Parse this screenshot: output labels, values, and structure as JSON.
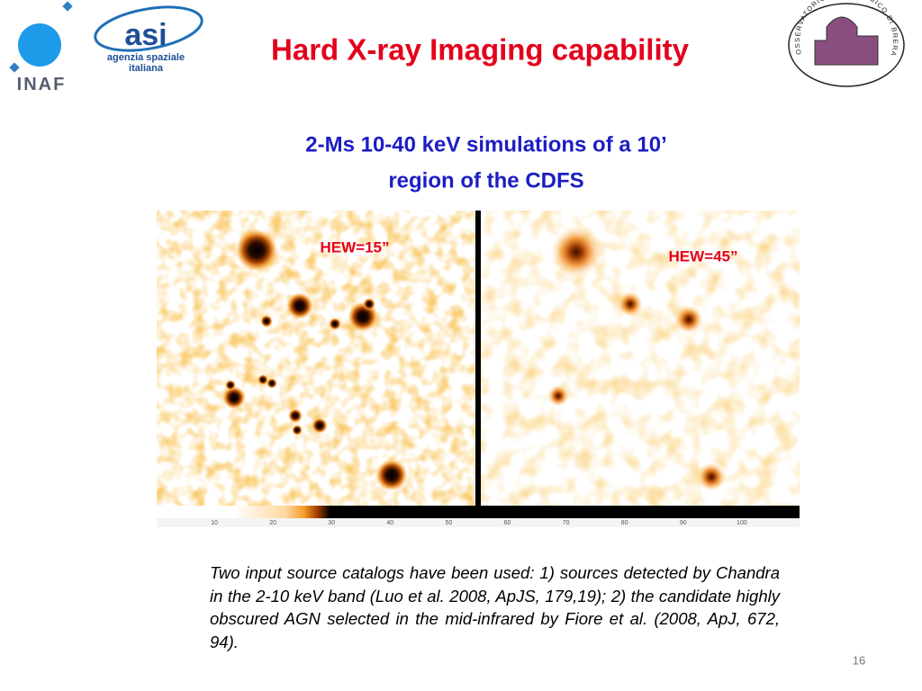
{
  "header": {
    "logos": {
      "inaf": "INAF",
      "asi": "asi",
      "asi_name": [
        "agenzia spaziale",
        "italiana"
      ],
      "brera": "OSSERVATORIO ASTRONOMICO DI BRERA"
    },
    "title": "Hard X-ray Imaging capability"
  },
  "subtitle": [
    "2-Ms 10-40 keV simulations of a 10’",
    "region of the CDFS"
  ],
  "figure": {
    "panels": [
      {
        "label": "HEW=15”"
      },
      {
        "label": "HEW=45”"
      }
    ],
    "colorbar_ticks": [
      10,
      20,
      30,
      40,
      50,
      60,
      70,
      80,
      90,
      100
    ]
  },
  "caption": "Two input source catalogs have been used: 1) sources detected by Chandra in the 2-10 keV band (Luo et al. 2008, ApJS, 179,19); 2) the candidate highly obscured AGN selected in the mid-infrared by Fiore et al. (2008, ApJ, 672, 94).",
  "page_number": "16"
}
